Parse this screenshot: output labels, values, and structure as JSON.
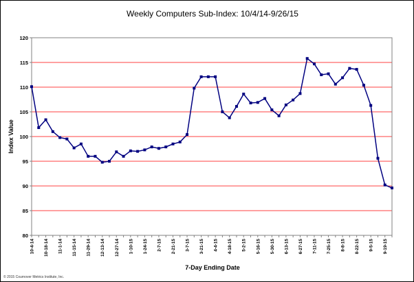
{
  "chart_data": {
    "type": "line",
    "title": "Weekly Computers Sub-Index: 10/4/14-9/26/15",
    "xlabel": "7-Day Ending Date",
    "ylabel": "Index Value",
    "ylim": [
      80,
      120
    ],
    "yticks": [
      80,
      85,
      90,
      95,
      100,
      105,
      110,
      115,
      120
    ],
    "grid": true,
    "copyright": "© 2015 Cournover Metrics Institute, Inc.",
    "x": [
      "10-4-14",
      "10-11-14",
      "10-18-14",
      "10-25-14",
      "11-1-14",
      "11-8-14",
      "11-15-14",
      "11-22-14",
      "11-29-14",
      "12-6-14",
      "12-13-14",
      "12-20-14",
      "12-27-14",
      "1-3-15",
      "1-10-15",
      "1-17-15",
      "1-24-15",
      "1-31-15",
      "2-7-15",
      "2-14-15",
      "2-21-15",
      "2-28-15",
      "3-7-15",
      "3-14-15",
      "3-21-15",
      "3-28-15",
      "4-4-15",
      "4-11-15",
      "4-18-15",
      "4-25-15",
      "5-2-15",
      "5-9-15",
      "5-16-15",
      "5-23-15",
      "5-30-15",
      "6-6-15",
      "6-13-15",
      "6-20-15",
      "6-27-15",
      "7-4-15",
      "7-11-15",
      "7-18-15",
      "7-25-15",
      "8-1-15",
      "8-8-15",
      "8-15-15",
      "8-22-15",
      "8-29-15",
      "9-5-15",
      "9-12-15",
      "9-19-15",
      "9-26-15"
    ],
    "xtick_labels": [
      "10-4-14",
      "10-18-14",
      "11-1-14",
      "11-15-14",
      "11-29-14",
      "12-13-14",
      "12-27-14",
      "1-10-15",
      "1-24-15",
      "2-7-15",
      "2-21-15",
      "3-7-15",
      "3-21-15",
      "4-4-15",
      "4-18-15",
      "5-2-15",
      "5-16-15",
      "5-30-15",
      "6-13-15",
      "6-27-15",
      "7-11-15",
      "7-25-15",
      "8-8-15",
      "8-22-15",
      "9-5-15",
      "9-19-15"
    ],
    "series": [
      {
        "color": "#000080",
        "values": [
          110.1,
          101.8,
          103.4,
          101.0,
          99.8,
          99.5,
          97.7,
          98.5,
          96.0,
          96.0,
          94.8,
          95.0,
          96.9,
          96.0,
          97.1,
          97.0,
          97.3,
          97.9,
          97.6,
          97.9,
          98.5,
          98.9,
          100.4,
          109.8,
          112.1,
          112.1,
          112.1,
          105.0,
          103.8,
          106.1,
          108.6,
          106.8,
          106.9,
          107.7,
          105.4,
          104.2,
          106.4,
          107.4,
          108.7,
          115.8,
          114.7,
          112.5,
          112.7,
          110.6,
          111.9,
          113.8,
          113.6,
          110.4,
          106.3,
          95.6,
          90.2,
          89.6
        ]
      }
    ]
  }
}
